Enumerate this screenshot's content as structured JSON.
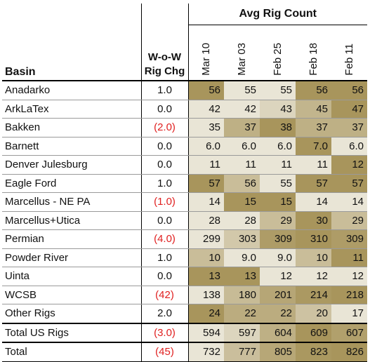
{
  "header": {
    "basin": "Basin",
    "chg_line1": "W-o-W",
    "chg_line2": "Rig Chg",
    "avg": "Avg Rig Count",
    "dates": [
      "Mar 10",
      "Mar 03",
      "Feb 25",
      "Feb 18",
      "Feb 11"
    ]
  },
  "colors": {
    "negative": "#e02020",
    "scale_low": "#ffffff",
    "scale_high": "#a8955c"
  },
  "rows": [
    {
      "basin": "Anadarko",
      "chg": "1.0",
      "neg": false,
      "vals": [
        "56",
        "55",
        "55",
        "56",
        "56"
      ]
    },
    {
      "basin": "ArkLaTex",
      "chg": "0.0",
      "neg": false,
      "vals": [
        "42",
        "42",
        "43",
        "45",
        "47"
      ]
    },
    {
      "basin": "Bakken",
      "chg": "(2.0)",
      "neg": true,
      "vals": [
        "35",
        "37",
        "38",
        "37",
        "37"
      ]
    },
    {
      "basin": "Barnett",
      "chg": "0.0",
      "neg": false,
      "vals": [
        "6.0",
        "6.0",
        "6.0",
        "7.0",
        "6.0"
      ]
    },
    {
      "basin": "Denver Julesburg",
      "chg": "0.0",
      "neg": false,
      "vals": [
        "11",
        "11",
        "11",
        "11",
        "12"
      ]
    },
    {
      "basin": "Eagle Ford",
      "chg": "1.0",
      "neg": false,
      "vals": [
        "57",
        "56",
        "55",
        "57",
        "57"
      ]
    },
    {
      "basin": "Marcellus - NE PA",
      "chg": "(1.0)",
      "neg": true,
      "vals": [
        "14",
        "15",
        "15",
        "14",
        "14"
      ]
    },
    {
      "basin": "Marcellus+Utica",
      "chg": "0.0",
      "neg": false,
      "vals": [
        "28",
        "28",
        "29",
        "30",
        "29"
      ]
    },
    {
      "basin": "Permian",
      "chg": "(4.0)",
      "neg": true,
      "vals": [
        "299",
        "303",
        "309",
        "310",
        "309"
      ]
    },
    {
      "basin": "Powder River",
      "chg": "1.0",
      "neg": false,
      "vals": [
        "10",
        "9.0",
        "9.0",
        "10",
        "11"
      ]
    },
    {
      "basin": "Uinta",
      "chg": "0.0",
      "neg": false,
      "vals": [
        "13",
        "13",
        "12",
        "12",
        "12"
      ]
    },
    {
      "basin": "WCSB",
      "chg": "(42)",
      "neg": true,
      "vals": [
        "138",
        "180",
        "201",
        "214",
        "218"
      ]
    },
    {
      "basin": "Other Rigs",
      "chg": "2.0",
      "neg": false,
      "vals": [
        "24",
        "22",
        "22",
        "20",
        "17"
      ]
    },
    {
      "basin": "Total US Rigs",
      "chg": "(3.0)",
      "neg": true,
      "vals": [
        "594",
        "597",
        "604",
        "609",
        "607"
      ],
      "kind": "total-us"
    },
    {
      "basin": "Total",
      "chg": "(45)",
      "neg": true,
      "vals": [
        "732",
        "777",
        "805",
        "823",
        "826"
      ],
      "kind": "total"
    }
  ]
}
